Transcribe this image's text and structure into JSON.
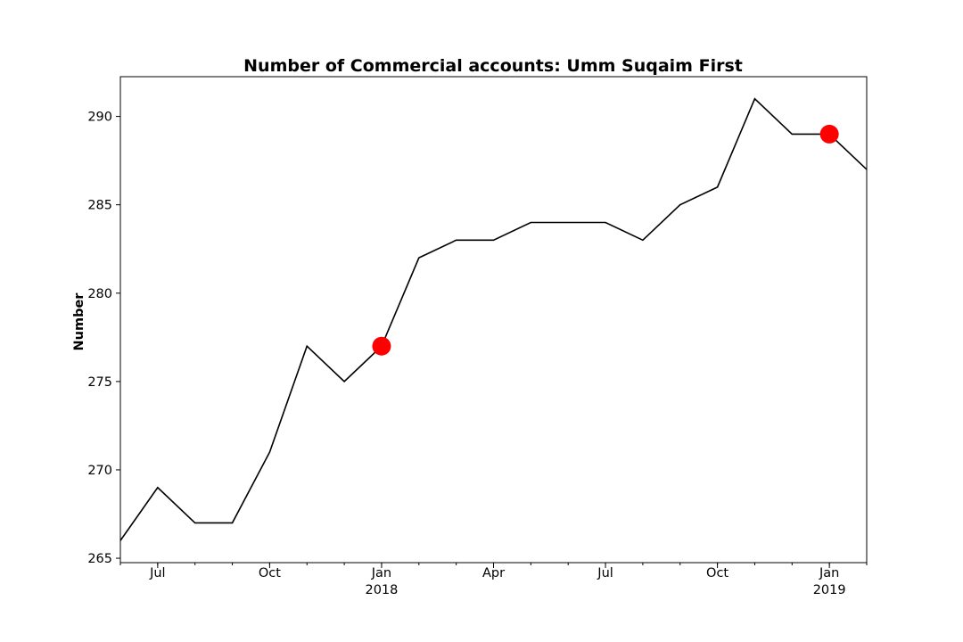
{
  "chart_data": {
    "type": "line",
    "title": "Number of Commercial accounts: Umm Suqaim First",
    "xlabel": "",
    "ylabel": "Number",
    "x": [
      "2017-06",
      "2017-07",
      "2017-08",
      "2017-09",
      "2017-10",
      "2017-11",
      "2017-12",
      "2018-01",
      "2018-02",
      "2018-03",
      "2018-04",
      "2018-05",
      "2018-06",
      "2018-07",
      "2018-08",
      "2018-09",
      "2018-10",
      "2018-11",
      "2018-12",
      "2019-01",
      "2019-02"
    ],
    "series": [
      {
        "values": [
          266,
          269,
          267,
          267,
          271,
          277,
          275,
          277,
          282,
          283,
          283,
          284,
          284,
          284,
          283,
          285,
          286,
          291,
          289,
          289,
          287
        ],
        "color": "#000000"
      }
    ],
    "highlighted_points": [
      {
        "x": "2018-01",
        "y": 277,
        "color": "#ff0000"
      },
      {
        "x": "2019-01",
        "y": 289,
        "color": "#ff0000"
      }
    ],
    "xlim": [
      "2017-06",
      "2019-02"
    ],
    "ylim": [
      264.75,
      292.25
    ],
    "y_ticks": [
      265,
      270,
      275,
      280,
      285,
      290
    ],
    "x_ticks": [
      {
        "x": "2017-07",
        "label": "Jul"
      },
      {
        "x": "2017-10",
        "label": "Oct"
      },
      {
        "x": "2018-01",
        "label": "Jan",
        "sublabel": "2018"
      },
      {
        "x": "2018-04",
        "label": "Apr"
      },
      {
        "x": "2018-07",
        "label": "Jul"
      },
      {
        "x": "2018-10",
        "label": "Oct"
      },
      {
        "x": "2019-01",
        "label": "Jan",
        "sublabel": "2019"
      }
    ],
    "grid": false
  }
}
